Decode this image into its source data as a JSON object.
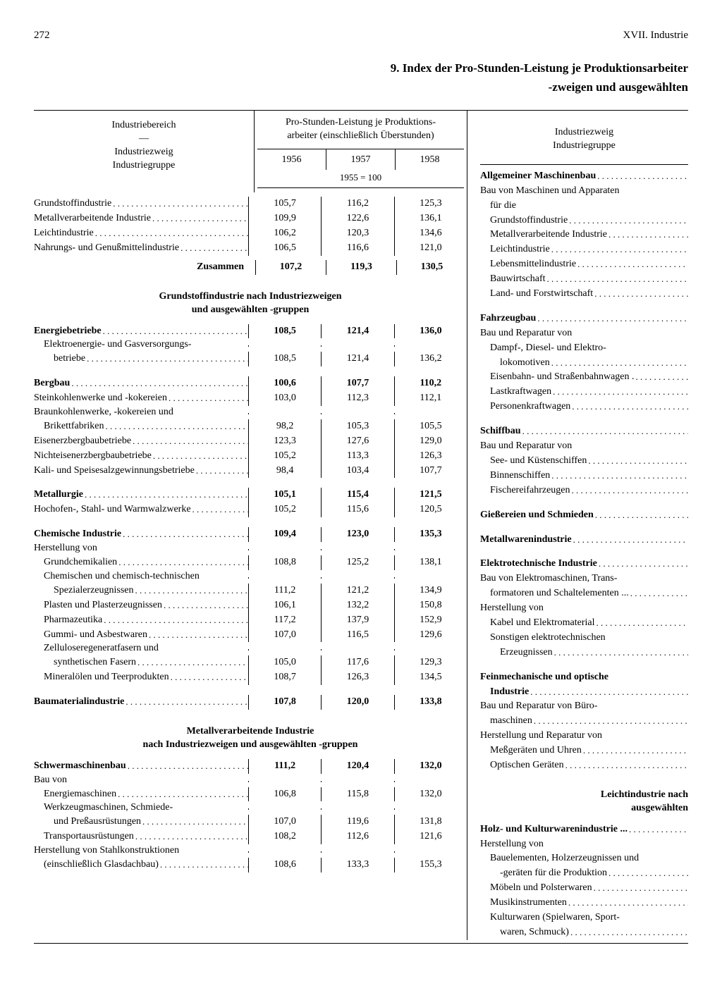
{
  "page_number": "272",
  "chapter": "XVII. Industrie",
  "title_line1": "9. Index der Pro-Stunden-Leistung je Produktionsarbeiter",
  "title_line2": "-zweigen und ausgewählten",
  "left_header": {
    "l1": "Industriebereich",
    "l2": "—",
    "l3": "Industriezweig",
    "l4": "Industriegruppe"
  },
  "val_header": "Pro-Stunden-Leistung je Produktions-\narbeiter (einschließlich Überstunden)",
  "years": [
    "1956",
    "1957",
    "1958"
  ],
  "base": "1955 = 100",
  "summary": [
    {
      "label": "Grundstoffindustrie",
      "v": [
        "105,7",
        "116,2",
        "125,3"
      ]
    },
    {
      "label": "Metallverarbeitende Industrie",
      "v": [
        "109,9",
        "122,6",
        "136,1"
      ]
    },
    {
      "label": "Leichtindustrie",
      "v": [
        "106,2",
        "120,3",
        "134,6"
      ]
    },
    {
      "label": "Nahrungs- und Genußmittelindustrie",
      "v": [
        "106,5",
        "116,6",
        "121,0"
      ]
    }
  ],
  "zusammen": {
    "label": "Zusammen",
    "v": [
      "107,2",
      "119,3",
      "130,5"
    ]
  },
  "sec1_title": "Grundstoffindustrie nach Industriezweigen\nund ausgewählten -gruppen",
  "sec1": [
    {
      "label": "Energiebetriebe",
      "bold": true,
      "v": [
        "108,5",
        "121,4",
        "136,0"
      ]
    },
    {
      "label": "Elektroenergie- und Gasversorgungs-",
      "nodots": true,
      "indent": 1
    },
    {
      "label": "betriebe",
      "indent": 2,
      "v": [
        "108,5",
        "121,4",
        "136,2"
      ]
    },
    {
      "spacer": true
    },
    {
      "label": "Bergbau",
      "bold": true,
      "v": [
        "100,6",
        "107,7",
        "110,2"
      ]
    },
    {
      "label": "Steinkohlenwerke und -kokereien",
      "v": [
        "103,0",
        "112,3",
        "112,1"
      ]
    },
    {
      "label": "Braunkohlenwerke, -kokereien und",
      "nodots": true
    },
    {
      "label": "Brikettfabriken",
      "indent": 1,
      "v": [
        "98,2",
        "105,3",
        "105,5"
      ]
    },
    {
      "label": "Eisenerzbergbaubetriebe",
      "v": [
        "123,3",
        "127,6",
        "129,0"
      ]
    },
    {
      "label": "Nichteisenerzbergbaubetriebe",
      "v": [
        "105,2",
        "113,3",
        "126,3"
      ]
    },
    {
      "label": "Kali- und Speisesalzgewinnungsbetriebe",
      "v": [
        "98,4",
        "103,4",
        "107,7"
      ]
    },
    {
      "spacer": true
    },
    {
      "label": "Metallurgie",
      "bold": true,
      "v": [
        "105,1",
        "115,4",
        "121,5"
      ]
    },
    {
      "label": "Hochofen-, Stahl- und Warmwalzwerke",
      "v": [
        "105,2",
        "115,6",
        "120,5"
      ]
    },
    {
      "spacer": true
    },
    {
      "label": "Chemische Industrie",
      "bold": true,
      "v": [
        "109,4",
        "123,0",
        "135,3"
      ]
    },
    {
      "label": "Herstellung von",
      "nodots": true
    },
    {
      "label": "Grundchemikalien",
      "indent": 1,
      "v": [
        "108,8",
        "125,2",
        "138,1"
      ]
    },
    {
      "label": "Chemischen und chemisch-technischen",
      "nodots": true,
      "indent": 1
    },
    {
      "label": "Spezialerzeugnissen",
      "indent": 2,
      "v": [
        "111,2",
        "121,2",
        "134,9"
      ]
    },
    {
      "label": "Plasten und Plasterzeugnissen",
      "indent": 1,
      "v": [
        "106,1",
        "132,2",
        "150,8"
      ]
    },
    {
      "label": "Pharmazeutika",
      "indent": 1,
      "v": [
        "117,2",
        "137,9",
        "152,9"
      ]
    },
    {
      "label": "Gummi- und Asbestwaren",
      "indent": 1,
      "v": [
        "107,0",
        "116,5",
        "129,6"
      ]
    },
    {
      "label": "Zelluloseregeneratfasern und",
      "nodots": true,
      "indent": 1
    },
    {
      "label": "synthetischen Fasern",
      "indent": 2,
      "v": [
        "105,0",
        "117,6",
        "129,3"
      ]
    },
    {
      "label": "Mineralölen und Teerprodukten",
      "indent": 1,
      "v": [
        "108,7",
        "126,3",
        "134,5"
      ]
    },
    {
      "spacer": true
    },
    {
      "label": "Baumaterialindustrie",
      "bold": true,
      "v": [
        "107,8",
        "120,0",
        "133,8"
      ]
    }
  ],
  "sec2_title": "Metallverarbeitende Industrie\nnach Industriezweigen und ausgewählten -gruppen",
  "sec2": [
    {
      "label": "Schwermaschinenbau",
      "bold": true,
      "v": [
        "111,2",
        "120,4",
        "132,0"
      ]
    },
    {
      "label": "Bau von",
      "nodots": true
    },
    {
      "label": "Energiemaschinen",
      "indent": 1,
      "v": [
        "106,8",
        "115,8",
        "132,0"
      ]
    },
    {
      "label": "Werkzeugmaschinen, Schmiede-",
      "nodots": true,
      "indent": 1
    },
    {
      "label": "und Preßausrüstungen",
      "indent": 2,
      "v": [
        "107,0",
        "119,6",
        "131,8"
      ]
    },
    {
      "label": "Transportausrüstungen",
      "indent": 1,
      "v": [
        "108,2",
        "112,6",
        "121,6"
      ]
    },
    {
      "label": "Herstellung von Stahlkonstruktionen",
      "nodots": true
    },
    {
      "label": "(einschließlich Glasdachbau)",
      "indent": 1,
      "v": [
        "108,6",
        "133,3",
        "155,3"
      ]
    }
  ],
  "right_header": {
    "l1": "Industriezweig",
    "l2": "Industriegruppe"
  },
  "right_rows": [
    {
      "label": "Allgemeiner Maschinenbau",
      "bold": true
    },
    {
      "label": "Bau von Maschinen und Apparaten",
      "nodots": true
    },
    {
      "label": "für die",
      "nodots": true,
      "indent": 1
    },
    {
      "label": "Grundstoffindustrie",
      "indent": 1
    },
    {
      "label": "Metallverarbeitende Industrie",
      "indent": 1
    },
    {
      "label": "Leichtindustrie",
      "indent": 1
    },
    {
      "label": "Lebensmittelindustrie",
      "indent": 1
    },
    {
      "label": "Bauwirtschaft",
      "indent": 1
    },
    {
      "label": "Land- und Forstwirtschaft",
      "indent": 1
    },
    {
      "spacer": true
    },
    {
      "label": "Fahrzeugbau",
      "bold": true
    },
    {
      "label": "Bau und Reparatur von",
      "nodots": true
    },
    {
      "label": "Dampf-, Diesel- und Elektro-",
      "nodots": true,
      "indent": 1
    },
    {
      "label": "lokomotiven",
      "indent": 2
    },
    {
      "label": "Eisenbahn- und Straßenbahnwagen",
      "indent": 1,
      "end": "."
    },
    {
      "label": "Lastkraftwagen",
      "indent": 1
    },
    {
      "label": "Personenkraftwagen",
      "indent": 1
    },
    {
      "spacer": true
    },
    {
      "label": "Schiffbau",
      "bold": true
    },
    {
      "label": "Bau und Reparatur von",
      "nodots": true
    },
    {
      "label": "See- und Küstenschiffen",
      "indent": 1
    },
    {
      "label": "Binnenschiffen",
      "indent": 1
    },
    {
      "label": "Fischereifahrzeugen",
      "indent": 1
    },
    {
      "spacer": true
    },
    {
      "label": "Gießereien und Schmieden",
      "bold": true
    },
    {
      "spacer": true
    },
    {
      "label": "Metallwarenindustrie",
      "bold": true
    },
    {
      "spacer": true
    },
    {
      "label": "Elektrotechnische Industrie",
      "bold": true
    },
    {
      "label": "Bau von Elektromaschinen, Trans-",
      "nodots": true
    },
    {
      "label": "formatoren und Schaltelementen",
      "indent": 1,
      "end": "..."
    },
    {
      "label": "Herstellung von",
      "nodots": true
    },
    {
      "label": "Kabel und Elektromaterial",
      "indent": 1
    },
    {
      "label": "Sonstigen elektrotechnischen",
      "nodots": true,
      "indent": 1
    },
    {
      "label": "Erzeugnissen",
      "indent": 2
    },
    {
      "spacer": true
    },
    {
      "label": "Feinmechanische und optische",
      "bold": true,
      "nodots": true
    },
    {
      "label": "Industrie",
      "bold": true,
      "indent": 1
    },
    {
      "label": "Bau und Reparatur von Büro-",
      "nodots": true
    },
    {
      "label": "maschinen",
      "indent": 1
    },
    {
      "label": "Herstellung und Reparatur von",
      "nodots": true
    },
    {
      "label": "Meßgeräten und Uhren",
      "indent": 1
    },
    {
      "label": "Optischen Geräten",
      "indent": 1
    }
  ],
  "right_sec2_title": "Leichtindustrie nach\nausgewählten",
  "right_sec2": [
    {
      "label": "Holz- und Kulturwarenindustrie",
      "bold": true,
      "end": "..."
    },
    {
      "label": "Herstellung von",
      "nodots": true
    },
    {
      "label": "Bauelementen, Holzerzeugnissen und",
      "nodots": true,
      "indent": 1
    },
    {
      "label": "-geräten für die Produktion",
      "indent": 2
    },
    {
      "label": "Möbeln und Polsterwaren",
      "indent": 1
    },
    {
      "label": "Musikinstrumenten",
      "indent": 1
    },
    {
      "label": "Kulturwaren (Spielwaren, Sport-",
      "nodots": true,
      "indent": 1
    },
    {
      "label": "waren, Schmuck)",
      "indent": 2
    }
  ]
}
